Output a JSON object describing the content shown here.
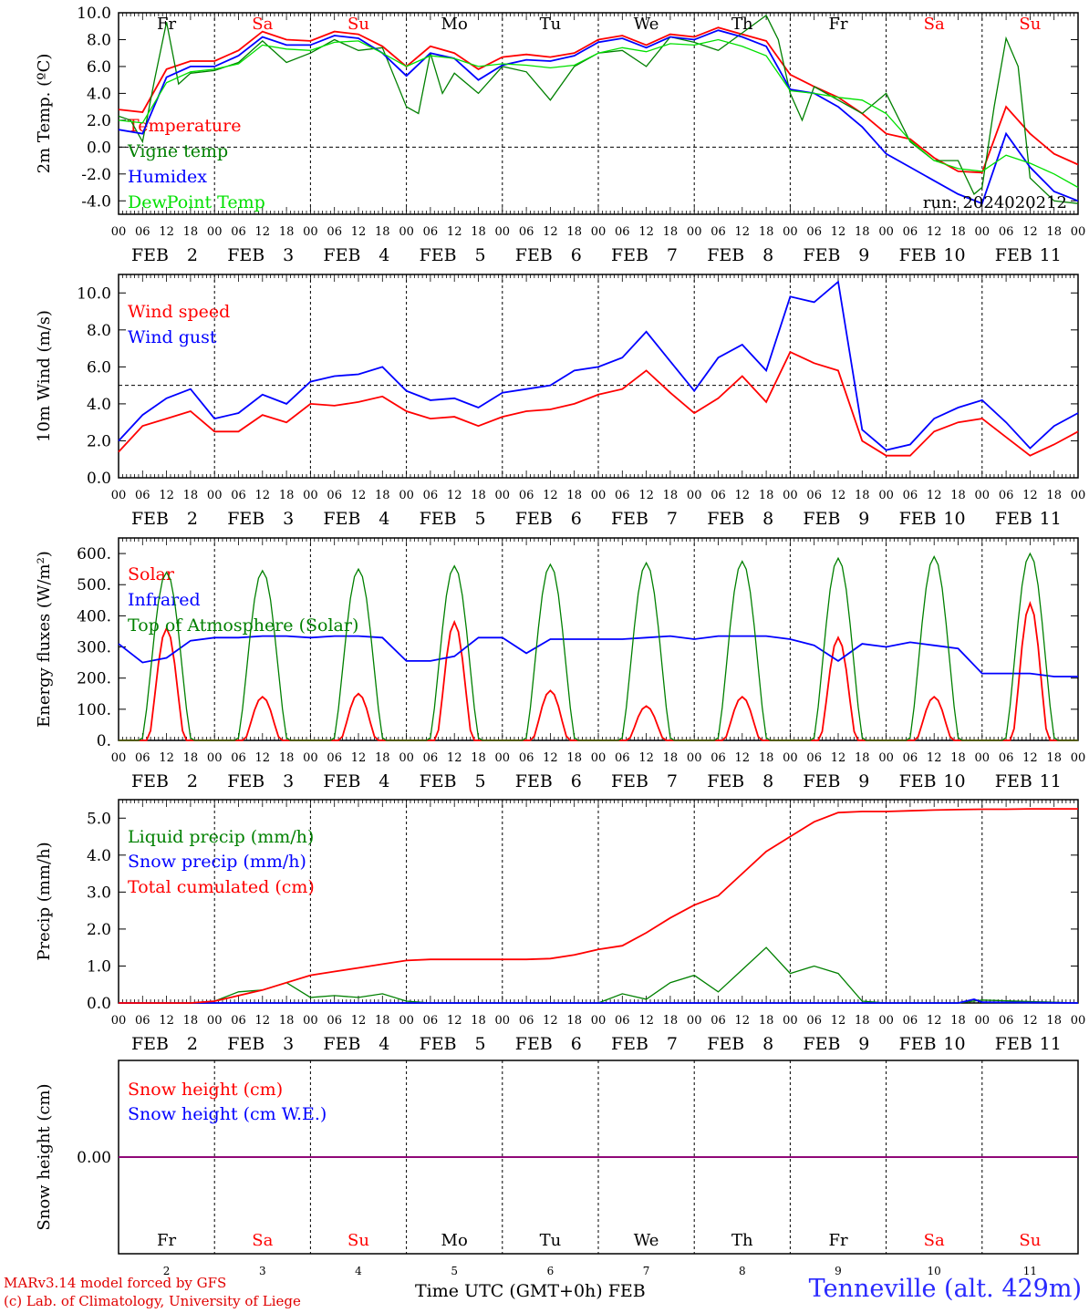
{
  "footer": {
    "credit_line1": "MARv3.14 model forced by GFS",
    "credit_line2": "(c) Lab. of Climatology, University of Liege",
    "station": "Tenneville (alt. 429m)",
    "xaxis_title": "Time UTC (GMT+0h) FEB"
  },
  "colors": {
    "red": "#ff0000",
    "blue": "#0000ff",
    "green": "#008000",
    "lightgreen": "#00e000",
    "purple": "#800080"
  },
  "days": [
    {
      "date": "2",
      "abbr": "Fr",
      "weekend": false
    },
    {
      "date": "3",
      "abbr": "Sa",
      "weekend": true
    },
    {
      "date": "4",
      "abbr": "Su",
      "weekend": true
    },
    {
      "date": "5",
      "abbr": "Mo",
      "weekend": false
    },
    {
      "date": "6",
      "abbr": "Tu",
      "weekend": false
    },
    {
      "date": "7",
      "abbr": "We",
      "weekend": false
    },
    {
      "date": "8",
      "abbr": "Th",
      "weekend": false
    },
    {
      "date": "9",
      "abbr": "Fr",
      "weekend": false
    },
    {
      "date": "10",
      "abbr": "Sa",
      "weekend": true
    },
    {
      "date": "11",
      "abbr": "Su",
      "weekend": true
    }
  ],
  "hour_ticks": [
    "00",
    "06",
    "12",
    "18"
  ],
  "month_label": "FEB",
  "chart_data": [
    {
      "type": "line",
      "ylabel": "2m Temp. (ºC)",
      "ylim": [
        -5,
        10
      ],
      "yticks": [
        "10.0",
        "8.0",
        "6.0",
        "4.0",
        "2.0",
        "0.0",
        "-2.0",
        "-4.0"
      ],
      "yvals": [
        10,
        8,
        6,
        4,
        2,
        0,
        -2,
        -4
      ],
      "ref_line": 0,
      "annotation": "run: 2024020212",
      "x_unit": "hours since FEB 2 00 UTC",
      "series": [
        {
          "name": "Temperature",
          "color": "red",
          "x": [
            0,
            6,
            12,
            18,
            24,
            30,
            36,
            42,
            48,
            54,
            60,
            66,
            72,
            78,
            84,
            90,
            96,
            102,
            108,
            114,
            120,
            126,
            132,
            138,
            144,
            150,
            156,
            162,
            168,
            174,
            180,
            186,
            192,
            198,
            204,
            210,
            216,
            222,
            228,
            234,
            240
          ],
          "y": [
            2.8,
            2.6,
            5.8,
            6.4,
            6.4,
            7.2,
            8.6,
            8.0,
            7.9,
            8.6,
            8.4,
            7.5,
            6.0,
            7.5,
            7.0,
            5.8,
            6.7,
            6.9,
            6.7,
            7.0,
            8.0,
            8.3,
            7.6,
            8.4,
            8.2,
            8.9,
            8.4,
            7.9,
            5.4,
            4.5,
            3.7,
            2.5,
            1.0,
            0.6,
            -0.8,
            -1.8,
            -1.9,
            3.0,
            1.0,
            -0.5,
            -1.3
          ]
        },
        {
          "name": "Vigne temp",
          "color": "green",
          "x": [
            0,
            3,
            6,
            9,
            12,
            15,
            18,
            24,
            30,
            36,
            42,
            48,
            54,
            60,
            66,
            72,
            75,
            78,
            81,
            84,
            90,
            96,
            102,
            108,
            114,
            120,
            126,
            132,
            138,
            144,
            150,
            156,
            162,
            165,
            168,
            171,
            174,
            180,
            186,
            192,
            198,
            204,
            210,
            214,
            216,
            219,
            222,
            225,
            228,
            234,
            240
          ],
          "y": [
            2.3,
            2.0,
            0.4,
            5.0,
            9.3,
            4.7,
            5.5,
            5.7,
            6.3,
            7.9,
            6.3,
            7.0,
            8.0,
            7.2,
            7.4,
            3.0,
            2.5,
            7.0,
            4.0,
            5.5,
            4.0,
            6.0,
            5.6,
            3.5,
            6.0,
            7.0,
            7.2,
            6.0,
            8.2,
            7.8,
            7.2,
            8.5,
            9.8,
            8.0,
            4.0,
            2.0,
            4.5,
            3.5,
            2.5,
            4.0,
            0.4,
            -1.0,
            -1.0,
            -3.5,
            -3.0,
            3.0,
            8.1,
            6.0,
            -2.3,
            -4.0,
            -4.2
          ]
        },
        {
          "name": "Humidex",
          "color": "blue",
          "x": [
            0,
            6,
            12,
            18,
            24,
            30,
            36,
            42,
            48,
            54,
            60,
            66,
            72,
            78,
            84,
            90,
            96,
            102,
            108,
            114,
            120,
            126,
            132,
            138,
            144,
            150,
            156,
            162,
            168,
            174,
            180,
            186,
            192,
            198,
            204,
            210,
            216,
            222,
            228,
            234,
            240
          ],
          "y": [
            1.3,
            1.0,
            5.2,
            6.0,
            6.0,
            6.8,
            8.2,
            7.6,
            7.6,
            8.3,
            8.1,
            7.0,
            5.3,
            7.0,
            6.6,
            5.0,
            6.1,
            6.5,
            6.4,
            6.8,
            7.8,
            8.1,
            7.4,
            8.2,
            8.0,
            8.7,
            8.2,
            7.5,
            4.3,
            4.0,
            3.0,
            1.5,
            -0.5,
            -1.5,
            -2.5,
            -3.5,
            -4.2,
            1.0,
            -1.5,
            -3.3,
            -4.0
          ]
        },
        {
          "name": "DewPoint Temp",
          "color": "lightgreen",
          "x": [
            0,
            6,
            12,
            18,
            24,
            30,
            36,
            42,
            48,
            54,
            60,
            66,
            72,
            78,
            84,
            90,
            96,
            102,
            108,
            114,
            120,
            126,
            132,
            138,
            144,
            150,
            156,
            162,
            168,
            174,
            180,
            186,
            192,
            198,
            204,
            210,
            216,
            222,
            228,
            234,
            240
          ],
          "y": [
            2.0,
            1.8,
            4.8,
            5.6,
            5.8,
            6.2,
            7.6,
            7.3,
            7.2,
            7.8,
            7.9,
            7.0,
            6.0,
            6.8,
            6.6,
            6.0,
            6.2,
            6.1,
            5.9,
            6.1,
            7.0,
            7.4,
            7.1,
            7.7,
            7.6,
            8.0,
            7.5,
            6.8,
            4.2,
            4.0,
            3.7,
            3.5,
            2.5,
            0.5,
            -1.0,
            -1.6,
            -1.8,
            -0.6,
            -1.2,
            -2.0,
            -3.0
          ]
        }
      ]
    },
    {
      "type": "line",
      "ylabel": "10m Wind (m/s)",
      "ylim": [
        0,
        11
      ],
      "yticks": [
        "10.0",
        "8.0",
        "6.0",
        "4.0",
        "2.0",
        "0.0"
      ],
      "yvals": [
        10,
        8,
        6,
        4,
        2,
        0
      ],
      "ref_line": 5,
      "series": [
        {
          "name": "Wind speed",
          "color": "red",
          "x": [
            0,
            6,
            12,
            18,
            24,
            30,
            36,
            42,
            48,
            54,
            60,
            66,
            72,
            78,
            84,
            90,
            96,
            102,
            108,
            114,
            120,
            126,
            132,
            138,
            144,
            150,
            156,
            162,
            168,
            174,
            180,
            186,
            192,
            198,
            204,
            210,
            216,
            222,
            228,
            234,
            240
          ],
          "y": [
            1.4,
            2.8,
            3.2,
            3.6,
            2.5,
            2.5,
            3.4,
            3.0,
            4.0,
            3.9,
            4.1,
            4.4,
            3.6,
            3.2,
            3.3,
            2.8,
            3.3,
            3.6,
            3.7,
            4.0,
            4.5,
            4.8,
            5.8,
            4.6,
            3.5,
            4.3,
            5.5,
            4.1,
            6.8,
            6.2,
            5.8,
            2.0,
            1.2,
            1.2,
            2.5,
            3.0,
            3.2,
            2.2,
            1.2,
            1.8,
            2.5
          ]
        },
        {
          "name": "Wind gust",
          "color": "blue",
          "x": [
            0,
            6,
            12,
            18,
            24,
            30,
            36,
            42,
            48,
            54,
            60,
            66,
            72,
            78,
            84,
            90,
            96,
            102,
            108,
            114,
            120,
            126,
            132,
            138,
            144,
            150,
            156,
            162,
            168,
            174,
            180,
            186,
            192,
            198,
            204,
            210,
            216,
            222,
            228,
            234,
            240
          ],
          "y": [
            2.0,
            3.4,
            4.3,
            4.8,
            3.2,
            3.5,
            4.5,
            4.0,
            5.2,
            5.5,
            5.6,
            6.0,
            4.7,
            4.2,
            4.3,
            3.8,
            4.6,
            4.8,
            5.0,
            5.8,
            6.0,
            6.5,
            7.9,
            6.3,
            4.7,
            6.5,
            7.2,
            5.8,
            9.8,
            9.5,
            10.6,
            2.6,
            1.5,
            1.8,
            3.2,
            3.8,
            4.2,
            3.0,
            1.6,
            2.8,
            3.5
          ]
        }
      ]
    },
    {
      "type": "line",
      "ylabel": "Energy fluxes (W/m²)",
      "ylim": [
        0,
        650
      ],
      "yticks": [
        "600.",
        "500.",
        "400.",
        "300.",
        "200.",
        "100.",
        "0."
      ],
      "yvals": [
        600,
        500,
        400,
        300,
        200,
        100,
        0
      ],
      "series": [
        {
          "name": "Solar",
          "color": "red",
          "peaks": [
            360,
            140,
            150,
            380,
            160,
            110,
            140,
            330,
            140,
            440
          ]
        },
        {
          "name": "Infrared",
          "color": "blue",
          "x": [
            0,
            6,
            12,
            18,
            24,
            30,
            36,
            42,
            48,
            54,
            60,
            66,
            72,
            78,
            84,
            90,
            96,
            102,
            108,
            114,
            120,
            126,
            132,
            138,
            144,
            150,
            156,
            162,
            168,
            174,
            180,
            186,
            192,
            198,
            204,
            210,
            216,
            222,
            228,
            234,
            240
          ],
          "y": [
            310,
            250,
            265,
            320,
            330,
            330,
            335,
            335,
            330,
            335,
            335,
            330,
            255,
            255,
            270,
            330,
            330,
            280,
            325,
            325,
            325,
            325,
            330,
            335,
            325,
            335,
            335,
            335,
            325,
            305,
            255,
            310,
            300,
            315,
            305,
            295,
            215,
            215,
            215,
            205,
            205
          ]
        },
        {
          "name": "Top of Atmosphere (Solar)",
          "color": "green",
          "peaks": [
            540,
            545,
            550,
            560,
            565,
            570,
            575,
            585,
            590,
            600
          ]
        }
      ]
    },
    {
      "type": "line",
      "ylabel": "Precip (mm/h)",
      "ylim": [
        0,
        5.5
      ],
      "yticks": [
        "5.0",
        "4.0",
        "3.0",
        "2.0",
        "1.0",
        "0.0"
      ],
      "yvals": [
        5,
        4,
        3,
        2,
        1,
        0
      ],
      "series": [
        {
          "name": "Liquid precip (mm/h)",
          "color": "green",
          "x": [
            0,
            18,
            24,
            30,
            36,
            42,
            48,
            54,
            60,
            66,
            72,
            78,
            120,
            126,
            132,
            138,
            144,
            150,
            156,
            162,
            168,
            174,
            180,
            186,
            192,
            210,
            216,
            240
          ],
          "y": [
            0,
            0,
            0.05,
            0.3,
            0.35,
            0.55,
            0.15,
            0.2,
            0.15,
            0.25,
            0.05,
            0,
            0,
            0.25,
            0.1,
            0.55,
            0.75,
            0.3,
            0.9,
            1.5,
            0.8,
            1.0,
            0.8,
            0.05,
            0,
            0,
            0.08,
            0
          ]
        },
        {
          "name": "Snow precip (mm/h)",
          "color": "blue",
          "x": [
            0,
            210,
            212,
            214,
            216,
            240
          ],
          "y": [
            0,
            0,
            0.05,
            0.1,
            0.02,
            0
          ]
        },
        {
          "name": "Total cumulated (cm)",
          "color": "red",
          "x": [
            0,
            18,
            24,
            30,
            36,
            42,
            48,
            54,
            60,
            66,
            72,
            78,
            90,
            102,
            108,
            114,
            120,
            126,
            132,
            138,
            144,
            150,
            156,
            162,
            168,
            174,
            180,
            186,
            192,
            198,
            204,
            210,
            216,
            222,
            228,
            234,
            240
          ],
          "y": [
            0,
            0,
            0.05,
            0.2,
            0.35,
            0.55,
            0.75,
            0.85,
            0.95,
            1.05,
            1.15,
            1.18,
            1.18,
            1.18,
            1.2,
            1.3,
            1.45,
            1.55,
            1.9,
            2.3,
            2.65,
            2.9,
            3.5,
            4.1,
            4.5,
            4.9,
            5.15,
            5.18,
            5.18,
            5.2,
            5.22,
            5.23,
            5.24,
            5.24,
            5.25,
            5.25,
            5.25
          ]
        }
      ]
    },
    {
      "type": "line",
      "ylabel": "Snow height (cm)",
      "ylim": [
        -1,
        1
      ],
      "yticks": [
        "0.00"
      ],
      "yvals": [
        0
      ],
      "series": [
        {
          "name": "Snow height (cm)",
          "color": "red",
          "x": [
            0,
            240
          ],
          "y": [
            0,
            0
          ]
        },
        {
          "name": "Snow height (cm W.E.)",
          "color": "blue",
          "x": [
            0,
            240
          ],
          "y": [
            0,
            0
          ]
        }
      ]
    }
  ]
}
